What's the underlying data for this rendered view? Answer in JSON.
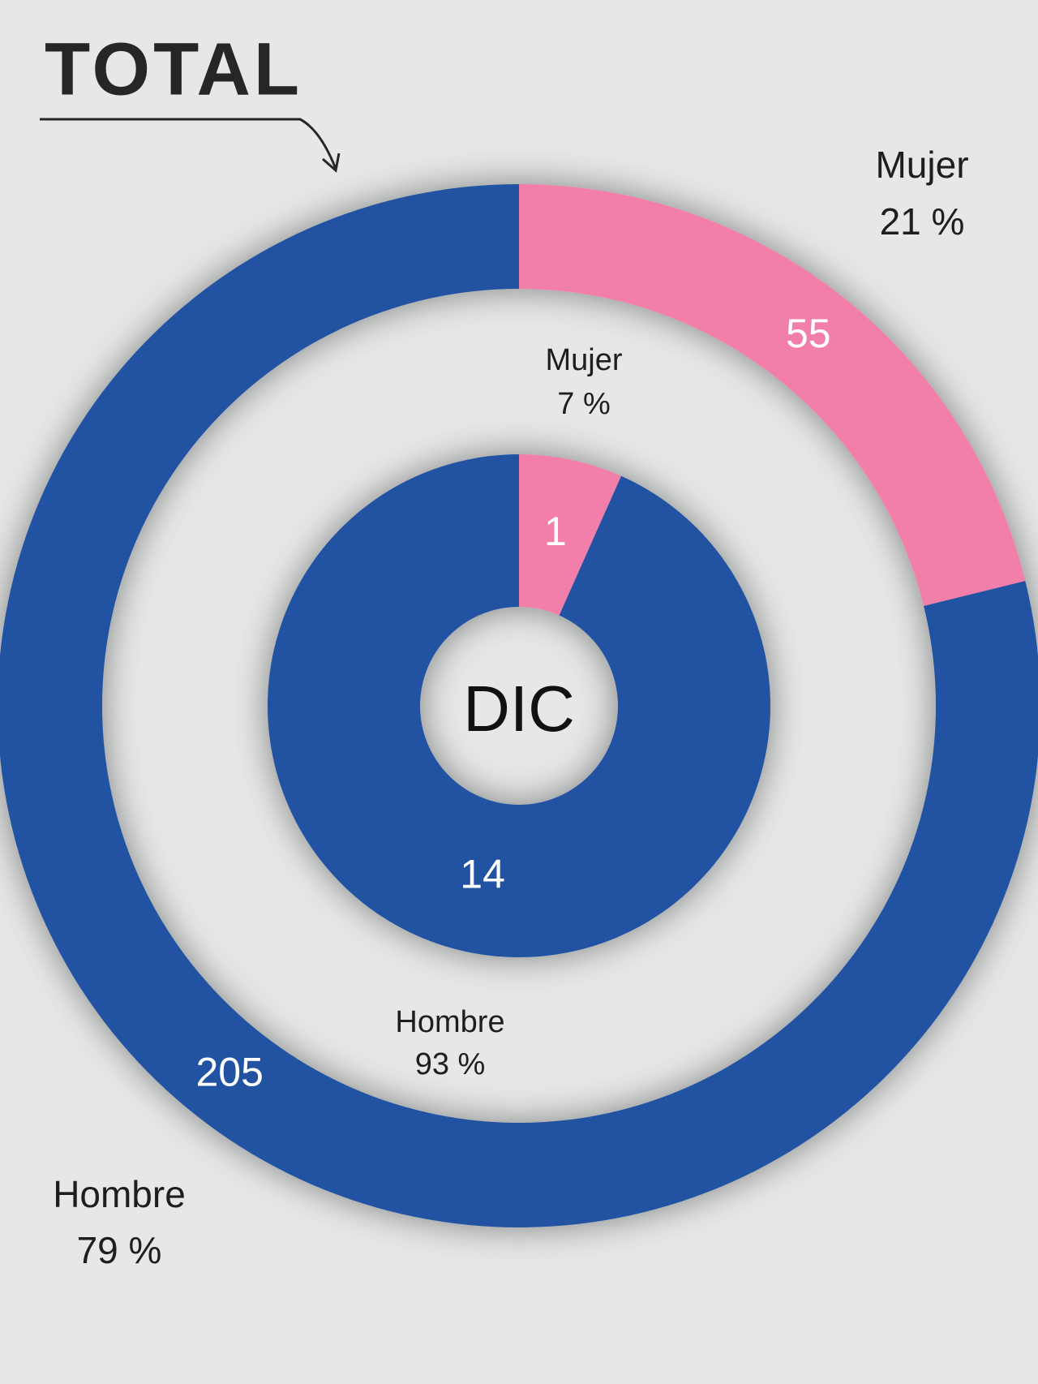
{
  "title": "TOTAL",
  "center_label": "DIC",
  "chart_data": [
    {
      "type": "pie",
      "categories": [
        "Mujer",
        "Hombre"
      ],
      "values": [
        55,
        205
      ],
      "shares": [
        {
          "value": 21,
          "label": "21 %"
        },
        {
          "value": 79,
          "label": "79 %"
        }
      ],
      "colors": [
        "#f27fa9",
        "#2253a3"
      ]
    },
    {
      "type": "pie",
      "categories": [
        "Mujer",
        "Hombre"
      ],
      "values": [
        1,
        14
      ],
      "shares": [
        {
          "value": 7,
          "label": "7 %"
        },
        {
          "value": 93,
          "label": "93 %"
        }
      ],
      "colors": [
        "#f27fa9",
        "#2253a3"
      ]
    }
  ]
}
